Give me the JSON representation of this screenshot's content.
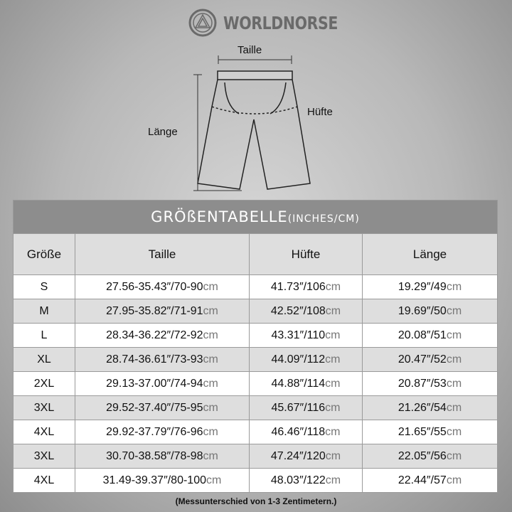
{
  "brand": "WORLDNORSE",
  "diagram": {
    "waist_label": "Taille",
    "hip_label": "Hüfte",
    "length_label": "Länge"
  },
  "table": {
    "title": "GRÖßENTABELLE",
    "title_unit": "(INCHES/CM)",
    "headers": [
      "Größe",
      "Taille",
      "Hüfte",
      "Länge"
    ],
    "rows": [
      {
        "size": "S",
        "waist": "27.56-35.43″/70-90",
        "hip": "41.73″/106",
        "length": "19.29″/49"
      },
      {
        "size": "M",
        "waist": "27.95-35.82″/71-91",
        "hip": "42.52″/108",
        "length": "19.69″/50"
      },
      {
        "size": "L",
        "waist": "28.34-36.22″/72-92",
        "hip": "43.31″/110",
        "length": "20.08″/51"
      },
      {
        "size": "XL",
        "waist": "28.74-36.61″/73-93",
        "hip": "44.09″/112",
        "length": "20.47″/52"
      },
      {
        "size": "2XL",
        "waist": "29.13-37.00″/74-94",
        "hip": "44.88″/114",
        "length": "20.87″/53"
      },
      {
        "size": "3XL",
        "waist": "29.52-37.40″/75-95",
        "hip": "45.67″/116",
        "length": "21.26″/54"
      },
      {
        "size": "4XL",
        "waist": "29.92-37.79″/76-96",
        "hip": "46.46″/118",
        "length": "21.65″/55"
      },
      {
        "size": "3XL",
        "waist": "30.70-38.58″/78-98",
        "hip": "47.24″/120",
        "length": "22.05″/56"
      },
      {
        "size": "4XL",
        "waist": "31.49-39.37″/80-100",
        "hip": "48.03″/122",
        "length": "22.44″/57"
      }
    ],
    "unit": "cm"
  },
  "note": "(Messunterschied von 1-3 Zentimetern.)"
}
